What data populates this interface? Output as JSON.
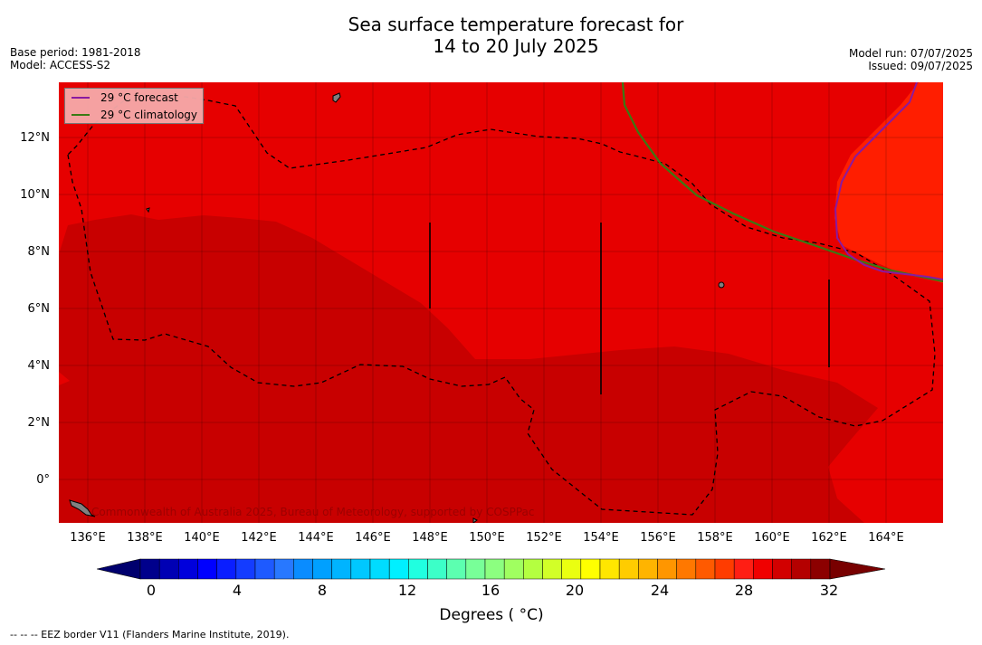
{
  "title_line1": "Sea surface temperature forecast for",
  "title_line2": "14 to 20 July 2025",
  "meta_left": {
    "base_period": "Base period: 1981-2018",
    "model": "Model: ACCESS-S2"
  },
  "meta_right": {
    "model_run": "Model run: 07/07/2025",
    "issued": "Issued: 09/07/2025"
  },
  "legend": {
    "forecast_label": "29 °C  forecast",
    "climatology_label": "29 °C  climatology",
    "forecast_color": "#8a1aa0",
    "climatology_color": "#3a7a14"
  },
  "latitude_labels": [
    "12°N",
    "10°N",
    "8°N",
    "6°N",
    "4°N",
    "2°N",
    "0°"
  ],
  "longitude_labels": [
    "136°E",
    "138°E",
    "140°E",
    "142°E",
    "144°E",
    "146°E",
    "148°E",
    "150°E",
    "152°E",
    "154°E",
    "156°E",
    "158°E",
    "160°E",
    "162°E",
    "164°E"
  ],
  "colorbar": {
    "tick_labels": [
      "0",
      "4",
      "8",
      "12",
      "16",
      "20",
      "24",
      "28",
      "32"
    ],
    "title": "Degrees ( °C)",
    "colors": [
      "#00008c",
      "#0000b4",
      "#0000dc",
      "#0000ff",
      "#0a1eff",
      "#143cff",
      "#1e5aff",
      "#2878ff",
      "#0a8cff",
      "#00a0ff",
      "#00b4ff",
      "#00c8ff",
      "#00dcff",
      "#00f0ff",
      "#20ffe0",
      "#3cffc8",
      "#5cffb0",
      "#78ff98",
      "#8cff80",
      "#a0ff60",
      "#b4ff40",
      "#d2ff28",
      "#eaff10",
      "#ffff00",
      "#ffe600",
      "#ffcc00",
      "#ffb400",
      "#ff9600",
      "#ff7800",
      "#ff5a00",
      "#ff3c00",
      "#ff1e14",
      "#f00000",
      "#d20000",
      "#b40000",
      "#8c0000"
    ],
    "min_color": "#00006e",
    "max_color": "#780000"
  },
  "map": {
    "colors": {
      "sst_29_30": "#e60000",
      "sst_30_31": "#c80000",
      "sst_28_29": "#ff1e00",
      "land": "#808080",
      "eez_line": "#000000"
    }
  },
  "copyright": "Commonwealth of Australia 2025, Bureau of Meteorology, supported by COSPPac",
  "footer": "--  --  -- EEZ border V11 (Flanders Marine Institute, 2019)."
}
